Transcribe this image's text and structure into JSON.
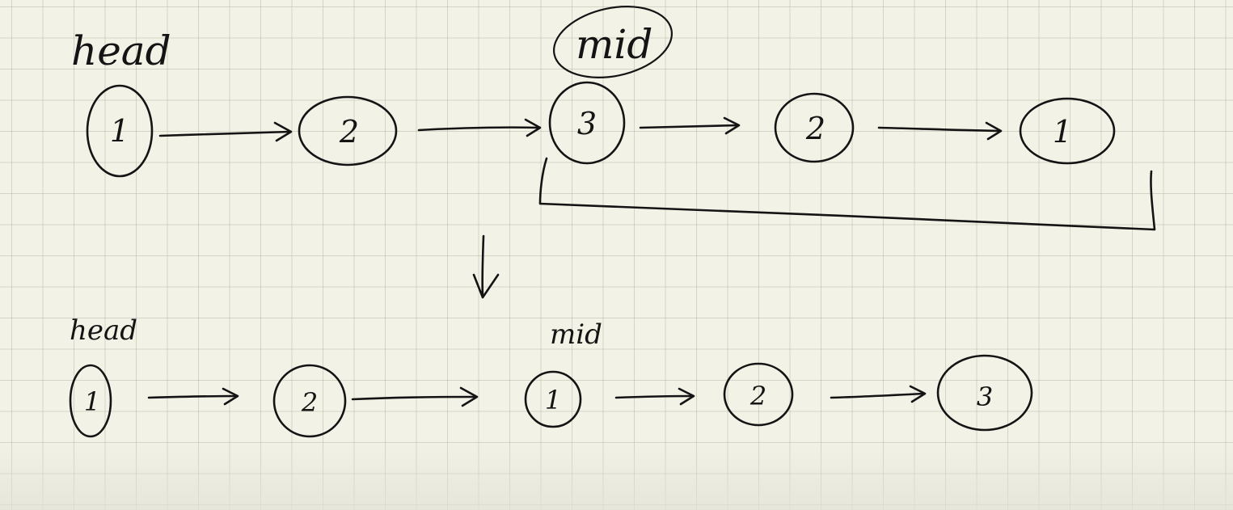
{
  "top_list": {
    "head_label": "head",
    "mid_label": "mid",
    "nodes": [
      "1",
      "2",
      "3",
      "2",
      "1"
    ]
  },
  "bottom_list": {
    "head_label": "head",
    "mid_label": "mid",
    "nodes": [
      "1",
      "2",
      "1",
      "2",
      "3"
    ]
  },
  "colors": {
    "paper": "#f3f2e6",
    "grid": "#afafa0",
    "ink": "#141414"
  }
}
